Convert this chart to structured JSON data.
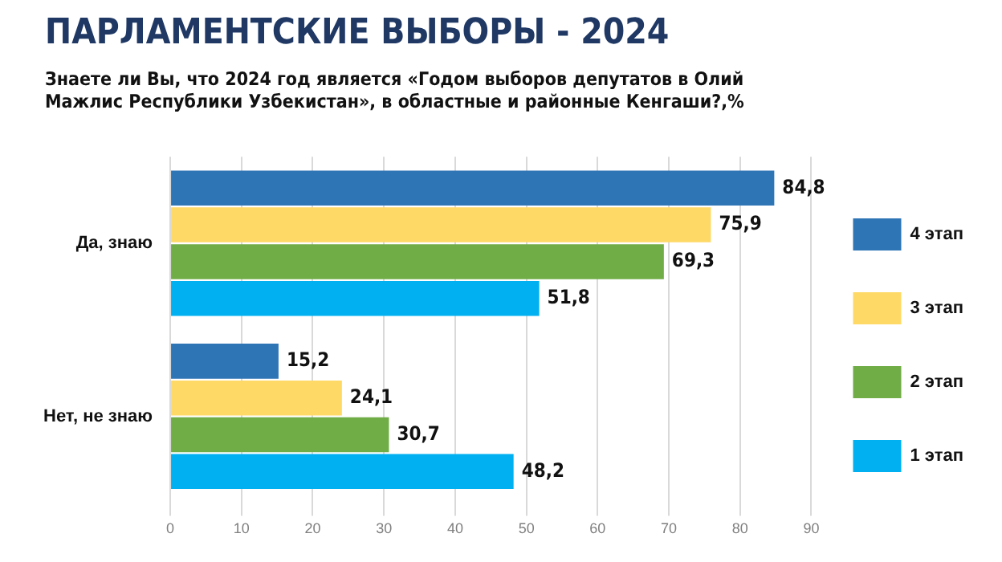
{
  "chart_data": {
    "type": "bar",
    "orientation": "horizontal",
    "title": "ПАРЛАМЕНТСКИЕ ВЫБОРЫ - 2024",
    "subtitle": "Знаете ли Вы, что 2024 год является «Годом выборов депутатов в Олий Мажлис Республики Узбекистан», в областные и районные Кенгаши?,%",
    "categories": [
      "Да, знаю",
      "Нет, не знаю"
    ],
    "series": [
      {
        "name": "4 этап",
        "color": "#2e75b6",
        "values": [
          84.8,
          15.2
        ],
        "value_labels": [
          "84,8",
          "15,2"
        ]
      },
      {
        "name": "3 этап",
        "color": "#ffd966",
        "values": [
          75.9,
          24.1
        ],
        "value_labels": [
          "75,9",
          "24,1"
        ]
      },
      {
        "name": "2 этап",
        "color": "#70ad47",
        "values": [
          69.3,
          30.7
        ],
        "value_labels": [
          "69,3",
          "30,7"
        ]
      },
      {
        "name": "1 этап",
        "color": "#00b0f0",
        "values": [
          51.8,
          48.2
        ],
        "value_labels": [
          "51,8",
          "48,2"
        ]
      }
    ],
    "xlim": [
      0,
      90
    ],
    "xticks": [
      0,
      10,
      20,
      30,
      40,
      50,
      60,
      70,
      80,
      90
    ],
    "grid": "x",
    "legend": "right"
  }
}
